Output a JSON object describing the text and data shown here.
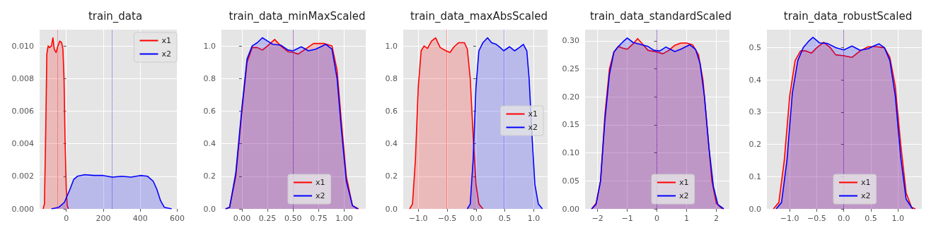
{
  "chart_data": [
    {
      "type": "area",
      "title": "train_data",
      "xlim": [
        -144,
        600
      ],
      "ylim": [
        0,
        0.011
      ],
      "xticks": [
        0,
        200,
        400,
        600
      ],
      "yticks": [
        {
          "value": 0,
          "label": "0.000"
        },
        {
          "value": 0.002,
          "label": "0.002"
        },
        {
          "value": 0.004,
          "label": "0.004"
        },
        {
          "value": 0.006,
          "label": "0.006"
        },
        {
          "value": 0.008,
          "label": "0.008"
        },
        {
          "value": 0.01,
          "label": "0.010"
        }
      ],
      "grid": true,
      "legend": "top right",
      "ref_lines": [
        {
          "axis": "x",
          "value": -49,
          "color": "#ff0000",
          "line_style": "dotted"
        },
        {
          "axis": "x",
          "value": 247,
          "color": "#0000ff",
          "line_style": "dotted"
        }
      ],
      "series": [
        {
          "name": "x1",
          "color": "#ff0000",
          "x": [
            -125,
            -118,
            -112,
            -105,
            -98,
            -90,
            -80,
            -72,
            -65,
            -55,
            -45,
            -35,
            -25,
            -18,
            -12,
            -6,
            0,
            5,
            12
          ],
          "values": [
            0,
            0.0003,
            0.004,
            0.0095,
            0.01,
            0.0099,
            0.01,
            0.0105,
            0.0098,
            0.0096,
            0.01,
            0.0103,
            0.0102,
            0.0098,
            0.008,
            0.004,
            0.0012,
            0.0002,
            0
          ]
        },
        {
          "name": "x2",
          "color": "#0000ff",
          "x": [
            -80,
            -40,
            -10,
            20,
            40,
            60,
            100,
            150,
            200,
            250,
            300,
            350,
            400,
            440,
            470,
            490,
            510,
            530,
            570
          ],
          "values": [
            0,
            0.0001,
            0.0004,
            0.0012,
            0.0018,
            0.002,
            0.0021,
            0.00205,
            0.00205,
            0.00195,
            0.002,
            0.00195,
            0.00205,
            0.002,
            0.0017,
            0.0012,
            0.0005,
            0.0001,
            0
          ]
        }
      ]
    },
    {
      "type": "area",
      "title": "train_data_minMaxScaled",
      "xlim": [
        -0.2,
        1.21
      ],
      "ylim": [
        0,
        1.1
      ],
      "xticks": [
        {
          "value": 0,
          "label": "0.00"
        },
        {
          "value": 0.25,
          "label": "0.25"
        },
        {
          "value": 0.5,
          "label": "0.50"
        },
        {
          "value": 0.75,
          "label": "0.75"
        },
        {
          "value": 1,
          "label": "1.00"
        }
      ],
      "yticks": [
        {
          "value": 0,
          "label": "0.0"
        },
        {
          "value": 0.2,
          "label": "0.2"
        },
        {
          "value": 0.4,
          "label": "0.4"
        },
        {
          "value": 0.6,
          "label": "0.6"
        },
        {
          "value": 0.8,
          "label": "0.8"
        },
        {
          "value": 1,
          "label": "1.0"
        }
      ],
      "grid": true,
      "legend": "bottom",
      "ref_lines": [
        {
          "axis": "x",
          "value": 0.5,
          "color": "#ff0000",
          "line_style": "dotted"
        },
        {
          "axis": "x",
          "value": 0.5,
          "color": "#0000ff",
          "line_style": "dotted"
        }
      ],
      "series": [
        {
          "name": "x1",
          "color": "#ff0000",
          "x": [
            -0.16,
            -0.12,
            -0.06,
            0,
            0.05,
            0.1,
            0.15,
            0.2,
            0.25,
            0.32,
            0.38,
            0.45,
            0.5,
            0.55,
            0.62,
            0.7,
            0.8,
            0.88,
            0.93,
            0.97,
            1.02,
            1.08,
            1.14
          ],
          "values": [
            0,
            0.01,
            0.2,
            0.6,
            0.9,
            0.99,
            0.99,
            0.975,
            1.0,
            1.04,
            1.0,
            0.965,
            0.96,
            0.95,
            0.98,
            1.015,
            1.015,
            1.0,
            0.85,
            0.55,
            0.2,
            0.02,
            0
          ]
        },
        {
          "name": "x2",
          "color": "#0000ff",
          "x": [
            -0.16,
            -0.12,
            -0.06,
            0,
            0.05,
            0.1,
            0.15,
            0.2,
            0.25,
            0.3,
            0.38,
            0.45,
            0.5,
            0.58,
            0.65,
            0.72,
            0.82,
            0.88,
            0.93,
            0.97,
            1.02,
            1.08,
            1.13
          ],
          "values": [
            0,
            0.01,
            0.22,
            0.62,
            0.92,
            1.0,
            1.02,
            1.05,
            1.03,
            1.01,
            1.005,
            0.975,
            0.97,
            0.995,
            0.97,
            0.98,
            1.01,
            0.98,
            0.8,
            0.5,
            0.17,
            0.02,
            0
          ]
        }
      ]
    },
    {
      "type": "area",
      "title": "train_data_maxAbsScaled",
      "xlim": [
        -1.26,
        1.24
      ],
      "ylim": [
        0,
        1.1
      ],
      "xticks": [
        {
          "value": -1,
          "label": "−1.0"
        },
        {
          "value": -0.5,
          "label": "−0.5"
        },
        {
          "value": 0,
          "label": "0.0"
        },
        {
          "value": 0.5,
          "label": "0.5"
        },
        {
          "value": 1,
          "label": "1.0"
        }
      ],
      "yticks": [
        {
          "value": 0,
          "label": "0.0"
        },
        {
          "value": 0.2,
          "label": "0.2"
        },
        {
          "value": 0.4,
          "label": "0.4"
        },
        {
          "value": 0.6,
          "label": "0.6"
        },
        {
          "value": 0.8,
          "label": "0.8"
        },
        {
          "value": 1,
          "label": "1.0"
        }
      ],
      "grid": true,
      "legend": "right",
      "ref_lines": [
        {
          "axis": "x",
          "value": -0.51,
          "color": "#ff0000",
          "line_style": "dotted"
        },
        {
          "axis": "x",
          "value": 0.48,
          "color": "#0000ff",
          "line_style": "dotted"
        }
      ],
      "series": [
        {
          "name": "x1",
          "color": "#ff0000",
          "x": [
            -1.15,
            -1.1,
            -1.05,
            -1.0,
            -0.95,
            -0.9,
            -0.84,
            -0.77,
            -0.7,
            -0.62,
            -0.52,
            -0.45,
            -0.38,
            -0.3,
            -0.2,
            -0.15,
            -0.1,
            -0.05,
            0,
            0.05,
            0.12
          ],
          "values": [
            0,
            0.03,
            0.3,
            0.75,
            0.97,
            1.0,
            0.985,
            1.03,
            1.05,
            0.99,
            0.97,
            0.96,
            0.995,
            1.02,
            1.02,
            0.98,
            0.8,
            0.45,
            0.15,
            0.03,
            0
          ]
        },
        {
          "name": "x2",
          "color": "#0000ff",
          "x": [
            -0.15,
            -0.1,
            -0.05,
            0,
            0.05,
            0.12,
            0.2,
            0.27,
            0.35,
            0.42,
            0.48,
            0.58,
            0.67,
            0.75,
            0.82,
            0.88,
            0.92,
            0.97,
            1.02,
            1.08,
            1.15
          ],
          "values": [
            0,
            0.03,
            0.3,
            0.75,
            0.97,
            1.02,
            1.05,
            1.02,
            1.01,
            0.99,
            0.97,
            0.995,
            0.97,
            0.99,
            1.01,
            0.97,
            0.8,
            0.45,
            0.15,
            0.03,
            0
          ]
        }
      ]
    },
    {
      "type": "area",
      "title": "train_data_standardScaled",
      "xlim": [
        -2.42,
        2.44
      ],
      "ylim": [
        0,
        0.32
      ],
      "xticks": [
        {
          "value": -2,
          "label": "−2"
        },
        {
          "value": -1,
          "label": "−1"
        },
        0,
        1,
        2
      ],
      "yticks": [
        {
          "value": 0,
          "label": "0.00"
        },
        {
          "value": 0.05,
          "label": "0.05"
        },
        {
          "value": 0.1,
          "label": "0.10"
        },
        {
          "value": 0.15,
          "label": "0.15"
        },
        {
          "value": 0.2,
          "label": "0.20"
        },
        {
          "value": 0.25,
          "label": "0.25"
        },
        {
          "value": 0.3,
          "label": "0.30"
        }
      ],
      "grid": true,
      "legend": "bottom",
      "ref_lines": [
        {
          "axis": "x",
          "value": 0,
          "color": "#ff0000",
          "line_style": "dotted"
        },
        {
          "axis": "x",
          "value": 0,
          "color": "#0000ff",
          "line_style": "dotted"
        }
      ],
      "series": [
        {
          "name": "x1",
          "color": "#ff0000",
          "x": [
            -2.2,
            -2.05,
            -1.9,
            -1.75,
            -1.6,
            -1.45,
            -1.3,
            -1.15,
            -1.0,
            -0.8,
            -0.65,
            -0.5,
            -0.3,
            0,
            0.2,
            0.4,
            0.6,
            0.8,
            1.0,
            1.2,
            1.4,
            1.55,
            1.7,
            1.85,
            2.0,
            2.2
          ],
          "values": [
            0,
            0.01,
            0.05,
            0.17,
            0.25,
            0.28,
            0.29,
            0.287,
            0.285,
            0.295,
            0.304,
            0.295,
            0.283,
            0.28,
            0.277,
            0.283,
            0.292,
            0.296,
            0.296,
            0.293,
            0.275,
            0.23,
            0.14,
            0.05,
            0.01,
            0
          ]
        },
        {
          "name": "x2",
          "color": "#0000ff",
          "x": [
            -2.2,
            -2.05,
            -1.9,
            -1.75,
            -1.6,
            -1.45,
            -1.3,
            -1.15,
            -1.0,
            -0.8,
            -0.5,
            -0.3,
            -0.1,
            0.1,
            0.3,
            0.45,
            0.6,
            0.8,
            1.1,
            1.3,
            1.45,
            1.6,
            1.75,
            1.9,
            2.05,
            2.25
          ],
          "values": [
            0,
            0.008,
            0.05,
            0.16,
            0.24,
            0.28,
            0.29,
            0.298,
            0.305,
            0.297,
            0.293,
            0.29,
            0.283,
            0.282,
            0.289,
            0.285,
            0.281,
            0.285,
            0.293,
            0.285,
            0.26,
            0.2,
            0.11,
            0.04,
            0.008,
            0
          ]
        }
      ]
    },
    {
      "type": "area",
      "title": "train_data_robustScaled",
      "xlim": [
        -1.42,
        1.44
      ],
      "ylim": [
        0,
        0.556
      ],
      "xticks": [
        {
          "value": -1,
          "label": "−1.0"
        },
        {
          "value": -0.5,
          "label": "−0.5"
        },
        {
          "value": 0,
          "label": "0.0"
        },
        {
          "value": 0.5,
          "label": "0.5"
        },
        {
          "value": 1,
          "label": "1.0"
        }
      ],
      "yticks": [
        {
          "value": 0,
          "label": "0.0"
        },
        {
          "value": 0.1,
          "label": "0.1"
        },
        {
          "value": 0.2,
          "label": "0.2"
        },
        {
          "value": 0.3,
          "label": "0.3"
        },
        {
          "value": 0.4,
          "label": "0.4"
        },
        {
          "value": 0.5,
          "label": "0.5"
        }
      ],
      "grid": true,
      "legend": "bottom",
      "ref_lines": [
        {
          "axis": "x",
          "value": 0,
          "color": "#ff0000",
          "line_style": "dotted"
        },
        {
          "axis": "x",
          "value": 0,
          "color": "#0000ff",
          "line_style": "dotted"
        }
      ],
      "series": [
        {
          "name": "x1",
          "color": "#ff0000",
          "x": [
            -1.3,
            -1.2,
            -1.1,
            -1.0,
            -0.9,
            -0.8,
            -0.7,
            -0.6,
            -0.5,
            -0.37,
            -0.25,
            -0.15,
            0,
            0.15,
            0.3,
            0.45,
            0.6,
            0.75,
            0.85,
            0.95,
            1.05,
            1.15,
            1.25,
            1.32
          ],
          "values": [
            0,
            0.02,
            0.15,
            0.35,
            0.46,
            0.49,
            0.49,
            0.483,
            0.5,
            0.517,
            0.5,
            0.478,
            0.475,
            0.47,
            0.49,
            0.503,
            0.503,
            0.5,
            0.47,
            0.38,
            0.2,
            0.05,
            0.005,
            0
          ]
        },
        {
          "name": "x2",
          "color": "#0000ff",
          "x": [
            -1.25,
            -1.15,
            -1.05,
            -0.95,
            -0.85,
            -0.75,
            -0.65,
            -0.57,
            -0.45,
            -0.3,
            -0.15,
            0,
            0.15,
            0.3,
            0.45,
            0.55,
            0.65,
            0.75,
            0.85,
            0.95,
            1.05,
            1.15,
            1.27
          ],
          "values": [
            0,
            0.02,
            0.15,
            0.36,
            0.46,
            0.5,
            0.52,
            0.532,
            0.515,
            0.513,
            0.5,
            0.493,
            0.505,
            0.492,
            0.497,
            0.505,
            0.512,
            0.5,
            0.46,
            0.35,
            0.16,
            0.03,
            0
          ]
        }
      ]
    }
  ]
}
